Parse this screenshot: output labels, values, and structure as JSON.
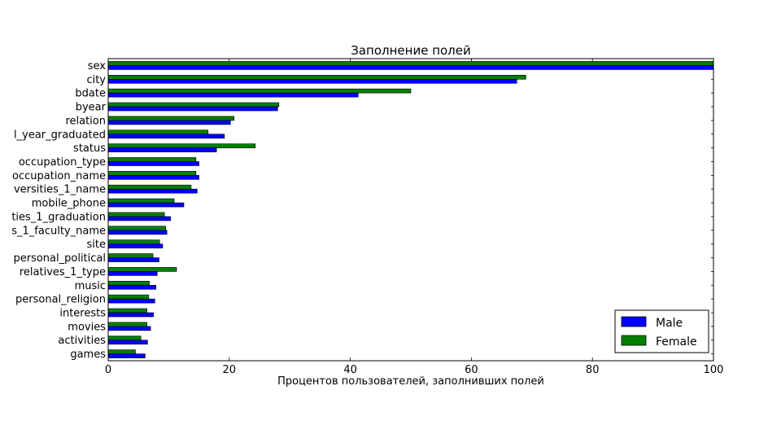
{
  "chart_data": {
    "type": "bar",
    "orientation": "horizontal",
    "title": "Заполнение полей",
    "xlabel": "Процентов пользователей, заполнивших полей",
    "ylabel": "",
    "xlim": [
      0,
      100
    ],
    "xticks": [
      "0",
      "20",
      "40",
      "60",
      "80",
      "100"
    ],
    "grid": false,
    "legend_position": "lower-right",
    "categories": [
      "sex",
      "city",
      "bdate",
      "byear",
      "relation",
      "l_year_graduated",
      "status",
      "occupation_type",
      "occupation_name",
      "versities_1_name",
      "mobile_phone",
      "ties_1_graduation",
      "s_1_faculty_name",
      "site",
      "personal_political",
      "relatives_1_type",
      "music",
      "personal_religion",
      "interests",
      "movies",
      "activities",
      "games"
    ],
    "series": [
      {
        "name": "Male",
        "color": "#0000ff",
        "values": [
          100,
          67.5,
          41.3,
          28.0,
          20.2,
          19.2,
          17.9,
          15.0,
          15.0,
          14.7,
          12.5,
          10.3,
          9.7,
          9.0,
          8.4,
          8.1,
          7.9,
          7.7,
          7.5,
          7.0,
          6.5,
          6.1
        ]
      },
      {
        "name": "Female",
        "color": "#008000",
        "values": [
          100,
          69.0,
          50.0,
          28.2,
          20.8,
          16.5,
          24.3,
          14.5,
          14.5,
          13.7,
          10.9,
          9.3,
          9.5,
          8.5,
          7.4,
          11.3,
          6.8,
          6.7,
          6.4,
          6.4,
          5.4,
          4.5
        ]
      }
    ]
  }
}
